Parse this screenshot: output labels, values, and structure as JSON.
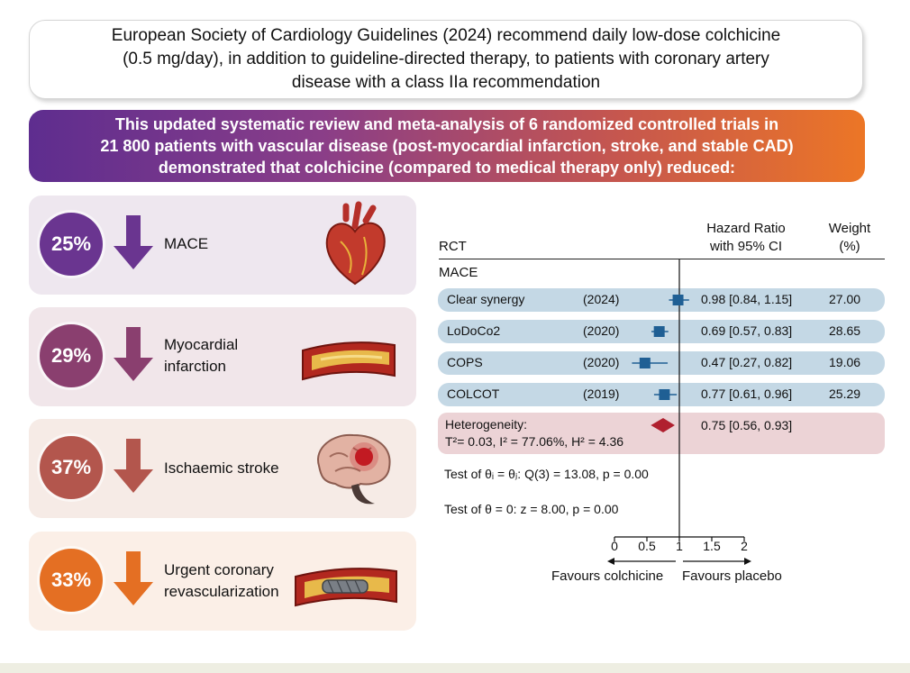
{
  "top_note": {
    "lines": [
      "European Society of Cardiology Guidelines (2024) recommend daily low-dose colchicine",
      "(0.5 mg/day), in addition to guideline-directed therapy, to patients with coronary artery",
      "disease with a class IIa recommendation"
    ]
  },
  "banner": {
    "lines": [
      "This updated systematic review and meta-analysis of 6 randomized controlled trials in",
      "21 800 patients with vascular disease (post-myocardial infarction, stroke, and stable CAD)",
      "demonstrated that colchicine (compared to medical therapy only) reduced:"
    ]
  },
  "outcomes": [
    {
      "percent": "25%",
      "label_lines": [
        "MACE"
      ],
      "icon": "heart-icon",
      "color": "#6a3590",
      "bg": "#eee7ef"
    },
    {
      "percent": "29%",
      "label_lines": [
        "Myocardial",
        "infarction"
      ],
      "icon": "artery-plaque-icon",
      "color": "#8a3f6f",
      "bg": "#f1e6ea"
    },
    {
      "percent": "37%",
      "label_lines": [
        "Ischaemic stroke"
      ],
      "icon": "brain-icon",
      "color": "#b3564d",
      "bg": "#f6ebe6"
    },
    {
      "percent": "33%",
      "label_lines": [
        "Urgent coronary",
        "revascularization"
      ],
      "icon": "stented-artery-icon",
      "color": "#e46f23",
      "bg": "#fbefe7"
    }
  ],
  "forest": {
    "col_rct": "RCT",
    "col_hr_line1": "Hazard Ratio",
    "col_hr_line2": "with 95% CI",
    "col_weight_line1": "Weight",
    "col_weight_line2": "(%)",
    "section": "MACE",
    "marker_color": "#1f5f94",
    "diamond_color": "#b0202f",
    "trials": [
      {
        "name": "Clear synergy",
        "year": "(2024)",
        "hr": 0.98,
        "lo": 0.84,
        "hi": 1.15,
        "hr_text": "0.98 [0.84, 1.15]",
        "weight": "27.00"
      },
      {
        "name": "LoDoCo2",
        "year": "(2020)",
        "hr": 0.69,
        "lo": 0.57,
        "hi": 0.83,
        "hr_text": "0.69 [0.57, 0.83]",
        "weight": "28.65"
      },
      {
        "name": "COPS",
        "year": "(2020)",
        "hr": 0.47,
        "lo": 0.27,
        "hi": 0.82,
        "hr_text": "0.47 [0.27, 0.82]",
        "weight": "19.06"
      },
      {
        "name": "COLCOT",
        "year": "(2019)",
        "hr": 0.77,
        "lo": 0.61,
        "hi": 0.96,
        "hr_text": "0.77 [0.61, 0.96]",
        "weight": "25.29"
      }
    ],
    "pooled": {
      "hr": 0.75,
      "lo": 0.56,
      "hi": 0.93,
      "hr_text": "0.75 [0.56, 0.93]",
      "het_label": "Heterogeneity:",
      "het_stats": "T²= 0.03, I² = 77.06%, H² = 4.36"
    },
    "test_theta_i": "Test of θᵢ = θⱼ: Q(3) = 13.08, p = 0.00",
    "test_theta_0": "Test of θ = 0: z = 8.00, p = 0.00",
    "axis_ticks": [
      "0",
      "0.5",
      "1",
      "1.5",
      "2"
    ],
    "favours_left": "Favours colchicine",
    "favours_right": "Favours placebo"
  }
}
